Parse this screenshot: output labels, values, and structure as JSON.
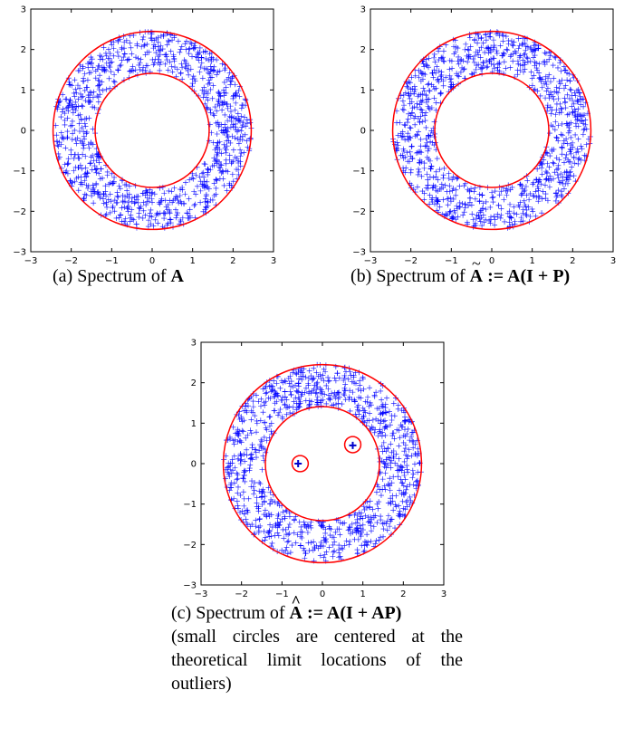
{
  "chart_data": [
    {
      "type": "scatter",
      "panel": "a",
      "xlim": [
        -3,
        3
      ],
      "ylim": [
        -3,
        3
      ],
      "xticks": [
        "−3",
        "−2",
        "−1",
        "0",
        "1",
        "2",
        "3"
      ],
      "yticks": [
        "3",
        "2",
        "1",
        "0",
        "−1",
        "−2",
        "−3"
      ],
      "eigenvalue_annulus": {
        "inner_radius": 1.41,
        "outer_radius": 2.45,
        "marker": "+",
        "color": "#0000ff",
        "count": 1000
      },
      "boundary_circles": [
        {
          "center": [
            0,
            0
          ],
          "radius": 1.41,
          "color": "#ff0000"
        },
        {
          "center": [
            0,
            0
          ],
          "radius": 2.45,
          "color": "#ff0000"
        }
      ],
      "outliers": [],
      "caption": {
        "label": "(a)",
        "text": "Spectrum of",
        "symbol": "A"
      }
    },
    {
      "type": "scatter",
      "panel": "b",
      "xlim": [
        -3,
        3
      ],
      "ylim": [
        -3,
        3
      ],
      "xticks": [
        "−3",
        "−2",
        "−1",
        "0",
        "1",
        "2",
        "3"
      ],
      "yticks": [
        "3",
        "2",
        "1",
        "0",
        "−1",
        "−2",
        "−3"
      ],
      "eigenvalue_annulus": {
        "inner_radius": 1.41,
        "outer_radius": 2.45,
        "marker": "+",
        "color": "#0000ff",
        "count": 1000
      },
      "boundary_circles": [
        {
          "center": [
            0,
            0
          ],
          "radius": 1.41,
          "color": "#ff0000"
        },
        {
          "center": [
            0,
            0
          ],
          "radius": 2.45,
          "color": "#ff0000"
        }
      ],
      "outliers": [],
      "caption": {
        "label": "(b)",
        "text": "Spectrum of",
        "symbol": "A",
        "accent": "~",
        "formula": " := A(I + P)"
      }
    },
    {
      "type": "scatter",
      "panel": "c",
      "xlim": [
        -3,
        3
      ],
      "ylim": [
        -3,
        3
      ],
      "xticks": [
        "−3",
        "−2",
        "−1",
        "0",
        "1",
        "2",
        "3"
      ],
      "yticks": [
        "3",
        "2",
        "1",
        "0",
        "−1",
        "−2",
        "−3"
      ],
      "eigenvalue_annulus": {
        "inner_radius": 1.41,
        "outer_radius": 2.45,
        "marker": "+",
        "color": "#0000ff",
        "count": 1000
      },
      "boundary_circles": [
        {
          "center": [
            0,
            0
          ],
          "radius": 1.41,
          "color": "#ff0000"
        },
        {
          "center": [
            0,
            0
          ],
          "radius": 2.45,
          "color": "#ff0000"
        },
        {
          "center": [
            -0.55,
            0
          ],
          "radius": 0.2,
          "color": "#ff0000"
        },
        {
          "center": [
            0.75,
            0.47
          ],
          "radius": 0.2,
          "color": "#ff0000"
        }
      ],
      "outliers": [
        {
          "x": -0.6,
          "y": 0.0
        },
        {
          "x": 0.75,
          "y": 0.45
        }
      ],
      "caption": {
        "label": "(c)",
        "text": "Spectrum of",
        "symbol": "A",
        "accent": "^",
        "formula": " := A(I + AP)",
        "note_lines": [
          "(small circles are centered at the",
          "theoretical limit locations of the",
          "outliers)"
        ]
      }
    }
  ]
}
